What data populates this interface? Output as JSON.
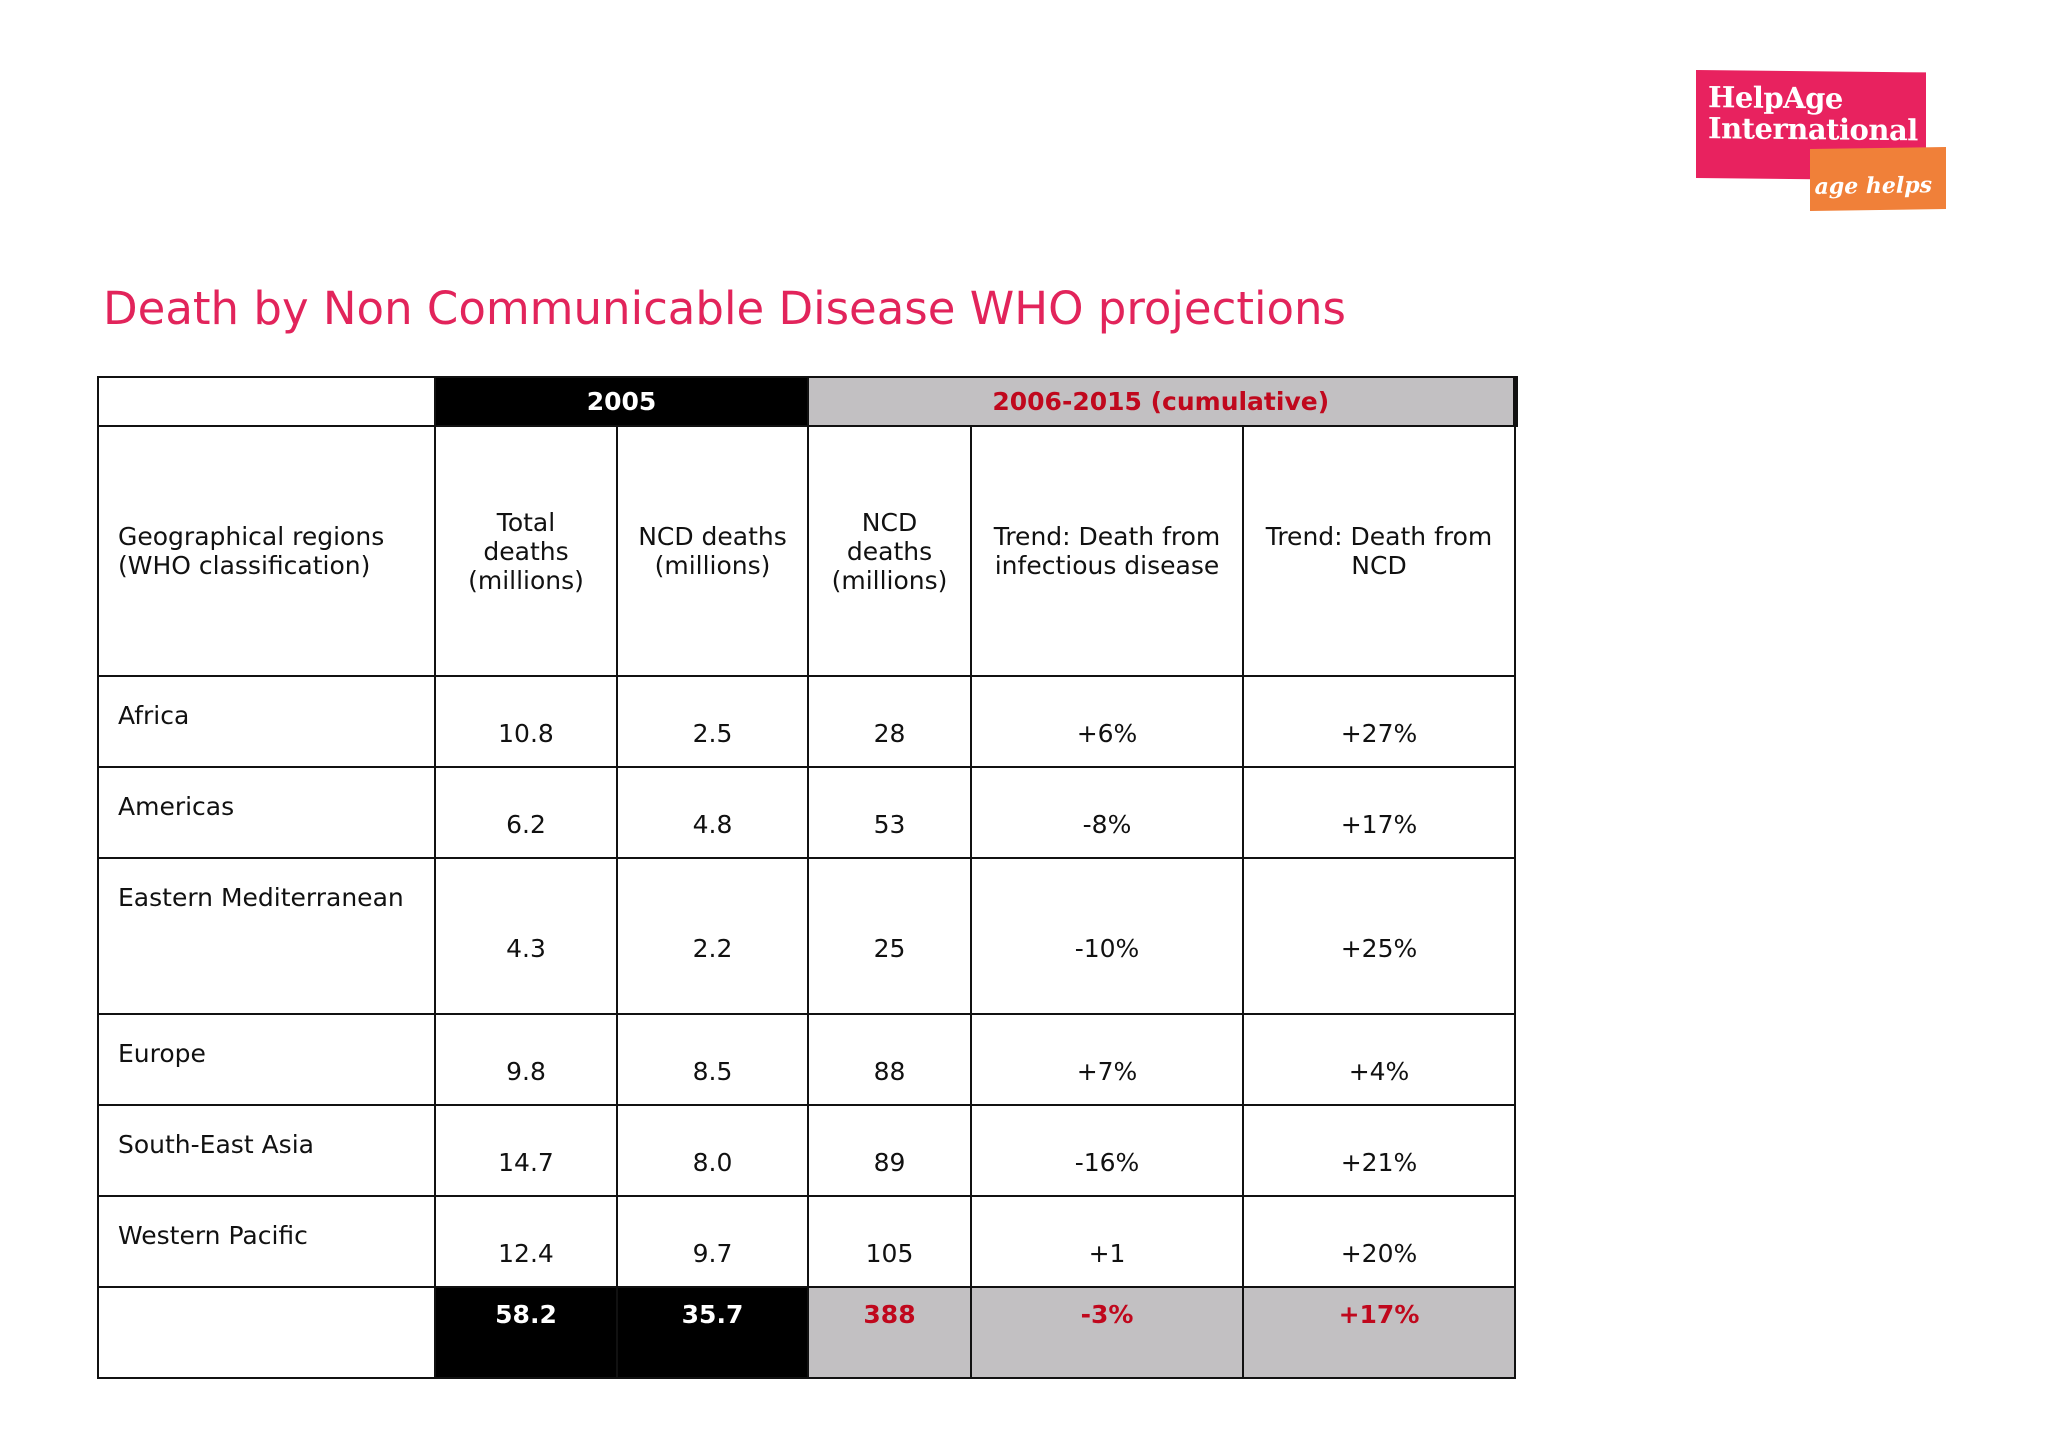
{
  "logo": {
    "line1": "HelpAge",
    "line2": "International",
    "tagline": "age helps"
  },
  "title": "Death by Non Communicable Disease WHO projections",
  "table": {
    "group_headers": {
      "y2005": "2005",
      "cumulative": "2006-2015 (cumulative)"
    },
    "column_headers": [
      [
        "Geographical regions",
        "(WHO classification)"
      ],
      [
        "Total",
        "deaths",
        "(millions)"
      ],
      [
        "NCD deaths",
        "(millions)"
      ],
      [
        "NCD",
        "deaths",
        "(millions)"
      ],
      [
        "Trend: Death from",
        "infectious disease"
      ],
      [
        "Trend: Death from",
        "NCD"
      ]
    ],
    "rows": [
      {
        "region": "Africa",
        "total": "10.8",
        "ncd2005": "2.5",
        "ncd_cum": "28",
        "trend_inf": "+6%",
        "trend_ncd": "+27%"
      },
      {
        "region": "Americas",
        "total": "6.2",
        "ncd2005": "4.8",
        "ncd_cum": "53",
        "trend_inf": "-8%",
        "trend_ncd": "+17%"
      },
      {
        "region": "Eastern Mediterranean",
        "total": "4.3",
        "ncd2005": "2.2",
        "ncd_cum": "25",
        "trend_inf": "-10%",
        "trend_ncd": "+25%"
      },
      {
        "region": "Europe",
        "total": "9.8",
        "ncd2005": "8.5",
        "ncd_cum": "88",
        "trend_inf": "+7%",
        "trend_ncd": "+4%"
      },
      {
        "region": "South-East Asia",
        "total": "14.7",
        "ncd2005": "8.0",
        "ncd_cum": "89",
        "trend_inf": "-16%",
        "trend_ncd": "+21%"
      },
      {
        "region": "Western Pacific",
        "total": "12.4",
        "ncd2005": "9.7",
        "ncd_cum": "105",
        "trend_inf": "+1",
        "trend_ncd": "+20%"
      }
    ],
    "totals": {
      "region": "",
      "total": "58.2",
      "ncd2005": "35.7",
      "ncd_cum": "388",
      "trend_inf": "-3%",
      "trend_ncd": "+17%"
    }
  },
  "colors": {
    "title": "#e2245b",
    "logo_pink": "#e8225f",
    "logo_orange": "#f08039",
    "highlight_red": "#c0081d",
    "grey_fill": "#c2c0c2"
  }
}
